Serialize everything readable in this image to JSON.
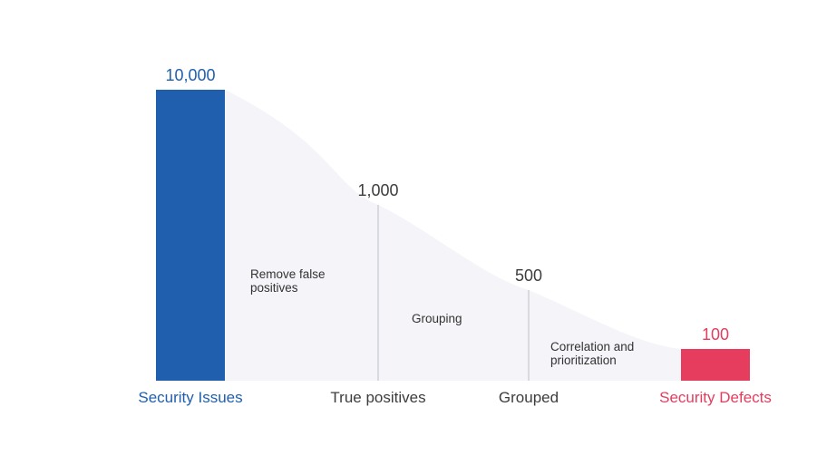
{
  "chart_data": {
    "type": "area",
    "categories": [
      "Security Issues",
      "True positives",
      "Grouped",
      "Security Defects"
    ],
    "values": [
      10000,
      1000,
      500,
      100
    ],
    "value_labels": [
      "10,000",
      "1,000",
      "500",
      "100"
    ],
    "step_labels": [
      [
        "Remove false",
        "positives"
      ],
      [
        "Grouping"
      ],
      [
        "Correlation and",
        "prioritization"
      ]
    ],
    "grid": false,
    "legend": "none"
  },
  "colors": {
    "start": "#1f5fad",
    "end": "#e63c5e",
    "area": "#f4f4f9",
    "text": "#3d3d3d",
    "divider": "#d9d9e0"
  }
}
